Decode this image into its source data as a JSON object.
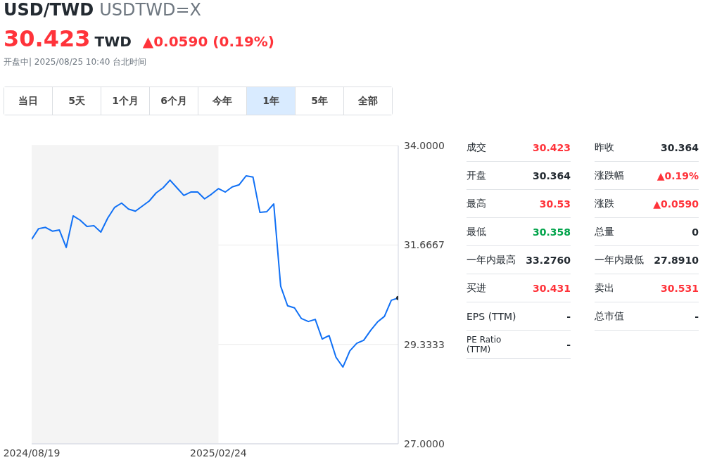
{
  "chart_data": [
    {
      "type": "line",
      "title": "USD/TWD",
      "subtitle": "USDTWD=X",
      "annotations": [
        "30.423",
        "TWD",
        "▲0.0590 (0.19%)",
        "开盘中| 2025/08/25 10:40 台北时间",
        "当日",
        "5天",
        "1个月",
        "6个月",
        "今年",
        "1年",
        "5年",
        "全部"
      ],
      "x": [
        "2024-08-19",
        "2024-08-26",
        "2024-09-02",
        "2024-09-09",
        "2024-09-16",
        "2024-09-23",
        "2024-09-30",
        "2024-10-07",
        "2024-10-14",
        "2024-10-21",
        "2024-10-28",
        "2024-11-04",
        "2024-11-11",
        "2024-11-18",
        "2024-11-25",
        "2024-12-02",
        "2024-12-09",
        "2024-12-16",
        "2024-12-23",
        "2024-12-30",
        "2025-01-06",
        "2025-01-13",
        "2025-01-20",
        "2025-01-27",
        "2025-02-03",
        "2025-02-10",
        "2025-02-17",
        "2025-02-24",
        "2025-03-03",
        "2025-03-10",
        "2025-03-17",
        "2025-03-24",
        "2025-03-31",
        "2025-04-07",
        "2025-04-14",
        "2025-04-21",
        "2025-04-28",
        "2025-05-05",
        "2025-05-12",
        "2025-05-19",
        "2025-05-26",
        "2025-06-02",
        "2025-06-09",
        "2025-06-16",
        "2025-06-23",
        "2025-06-30",
        "2025-07-07",
        "2025-07-14",
        "2025-07-21",
        "2025-07-28",
        "2025-08-04",
        "2025-08-11",
        "2025-08-18",
        "2025-08-25"
      ],
      "series": [
        {
          "color": "#1070f5",
          "values": [
            31.8,
            32.05,
            32.08,
            31.99,
            32.02,
            31.61,
            32.35,
            32.25,
            32.1,
            32.12,
            31.97,
            32.3,
            32.55,
            32.65,
            32.51,
            32.46,
            32.58,
            32.7,
            32.89,
            33.01,
            33.19,
            33.01,
            32.83,
            32.91,
            32.91,
            32.75,
            32.86,
            32.99,
            32.91,
            33.03,
            33.08,
            33.29,
            33.26,
            32.43,
            32.45,
            32.63,
            30.7,
            30.24,
            30.19,
            29.94,
            29.87,
            29.92,
            29.46,
            29.54,
            29.03,
            28.8,
            29.18,
            29.36,
            29.43,
            29.66,
            29.86,
            29.99,
            30.37,
            30.423
          ]
        }
      ],
      "xlim": [
        "2024-08-19",
        "2025-08-25"
      ],
      "xticks": [
        {
          "value": "2024-08-19",
          "label": "2024/08/19"
        },
        {
          "value": "2025-02-24",
          "label": "2025/02/24"
        }
      ],
      "ylim": [
        27,
        34
      ],
      "yticks": [
        {
          "value": 27,
          "label": "27.0000"
        },
        {
          "value": 29.3333,
          "label": "29.3333"
        },
        {
          "value": 31.6667,
          "label": "31.6667"
        },
        {
          "value": 34,
          "label": "34.0000"
        }
      ],
      "bands": [
        {
          "axis": "x",
          "from": "2024-08-19",
          "to": "2025-02-24",
          "color": "#f4f4f4"
        }
      ],
      "grid": "y",
      "line_style": "solid"
    },
    {
      "type": "other",
      "categories": [
        "成交",
        "开盘",
        "最高",
        "最低",
        "一年内最高",
        "买进",
        "EPS (TTM)",
        "PE Ratio (TTM)",
        "昨收",
        "涨跌幅",
        "涨跌",
        "总量",
        "一年内最低",
        "卖出",
        "总市值"
      ],
      "value_labels": [
        "30.423",
        "30.364",
        "30.53",
        "30.358",
        "33.2760",
        "30.431",
        "-",
        "-",
        "30.364",
        "▲0.19%",
        "▲0.0590",
        "0",
        "27.8910",
        "30.531",
        "-"
      ],
      "colors": [
        "#ff333a",
        "#232a31",
        "#ff333a",
        "#00a34a",
        "#232a31",
        "#ff333a",
        "#232a31",
        "#232a31",
        "#232a31",
        "#ff333a",
        "#ff333a",
        "#232a31",
        "#232a31",
        "#ff333a",
        "#232a31"
      ]
    }
  ]
}
